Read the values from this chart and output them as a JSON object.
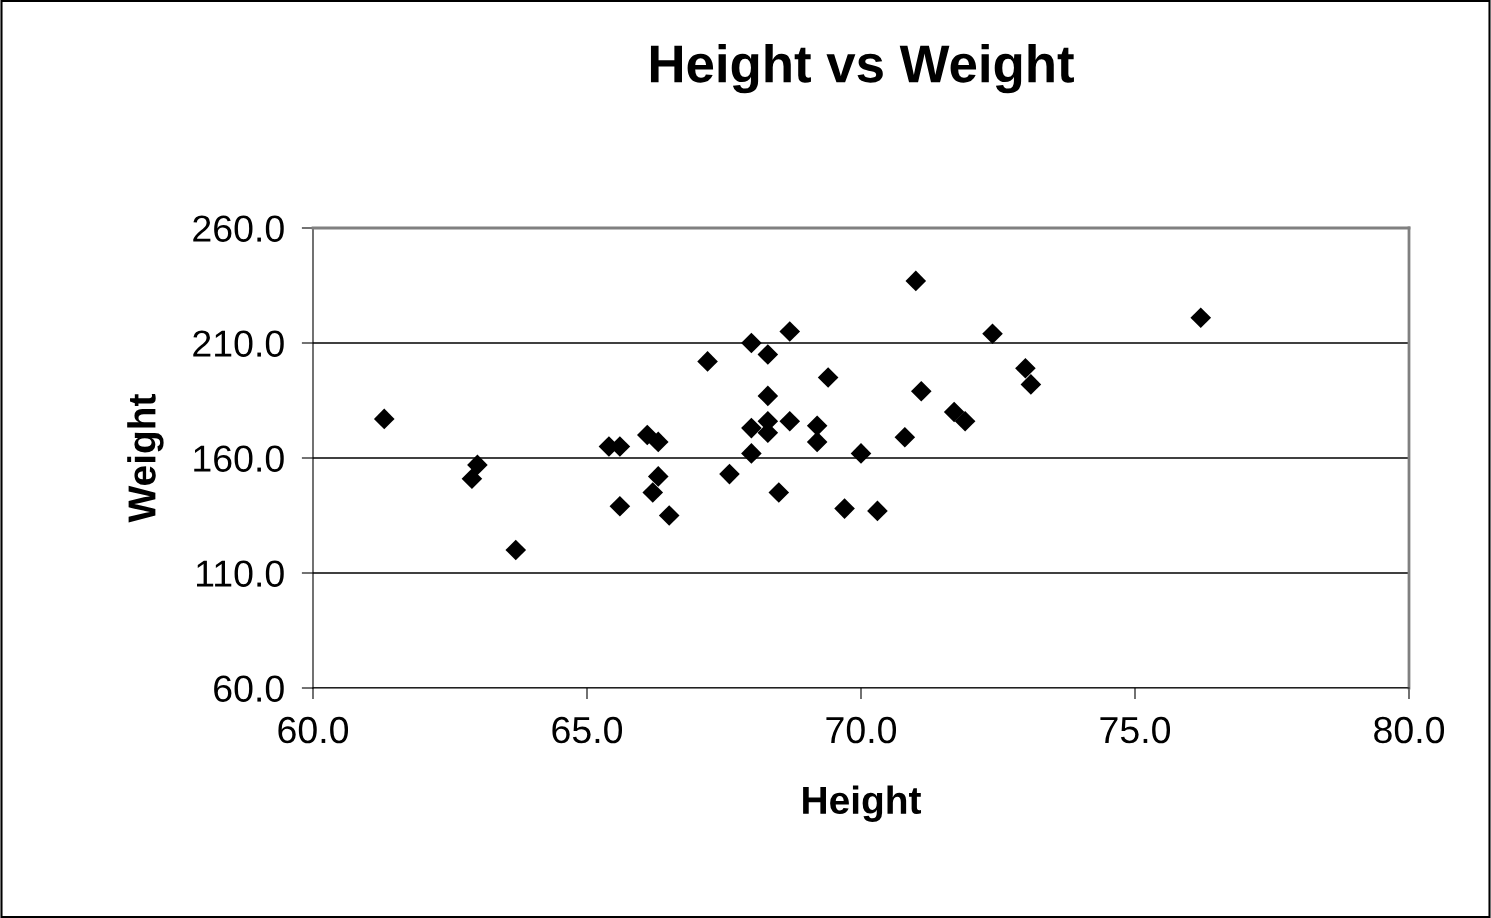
{
  "chart_data": {
    "type": "scatter",
    "title": "Height vs Weight",
    "xlabel": "Height",
    "ylabel": "Weight",
    "x": [
      61.3,
      62.9,
      63.0,
      63.7,
      65.4,
      65.6,
      65.6,
      66.1,
      66.3,
      66.3,
      66.2,
      66.5,
      67.2,
      67.6,
      68.0,
      68.0,
      68.0,
      68.3,
      68.3,
      68.3,
      68.3,
      68.7,
      68.7,
      68.5,
      69.2,
      69.2,
      69.4,
      69.7,
      70.0,
      70.3,
      70.8,
      71.0,
      71.1,
      71.7,
      71.9,
      72.4,
      73.0,
      73.1,
      76.2
    ],
    "series": [
      {
        "color": "#000000",
        "values": [
          177,
          151,
          157,
          120,
          165,
          165,
          139,
          170,
          167,
          152,
          145,
          135,
          202,
          153,
          210,
          173,
          162,
          205,
          187,
          176,
          171,
          215,
          176,
          145,
          174,
          167,
          195,
          138,
          162,
          137,
          169,
          237,
          189,
          180,
          176,
          214,
          199,
          192,
          221
        ]
      }
    ],
    "xlim": [
      60,
      80
    ],
    "xticks": [
      {
        "value": 60,
        "label": "60.0"
      },
      {
        "value": 65,
        "label": "65.0"
      },
      {
        "value": 70,
        "label": "70.0"
      },
      {
        "value": 75,
        "label": "75.0"
      },
      {
        "value": 80,
        "label": "80.0"
      }
    ],
    "ylim": [
      60,
      260
    ],
    "yticks": [
      {
        "value": 60,
        "label": "60.0"
      },
      {
        "value": 110,
        "label": "110.0"
      },
      {
        "value": 160,
        "label": "160.0"
      },
      {
        "value": 210,
        "label": "210.0"
      },
      {
        "value": 260,
        "label": "260.0"
      }
    ],
    "grid": "y",
    "marker": "diamond"
  }
}
